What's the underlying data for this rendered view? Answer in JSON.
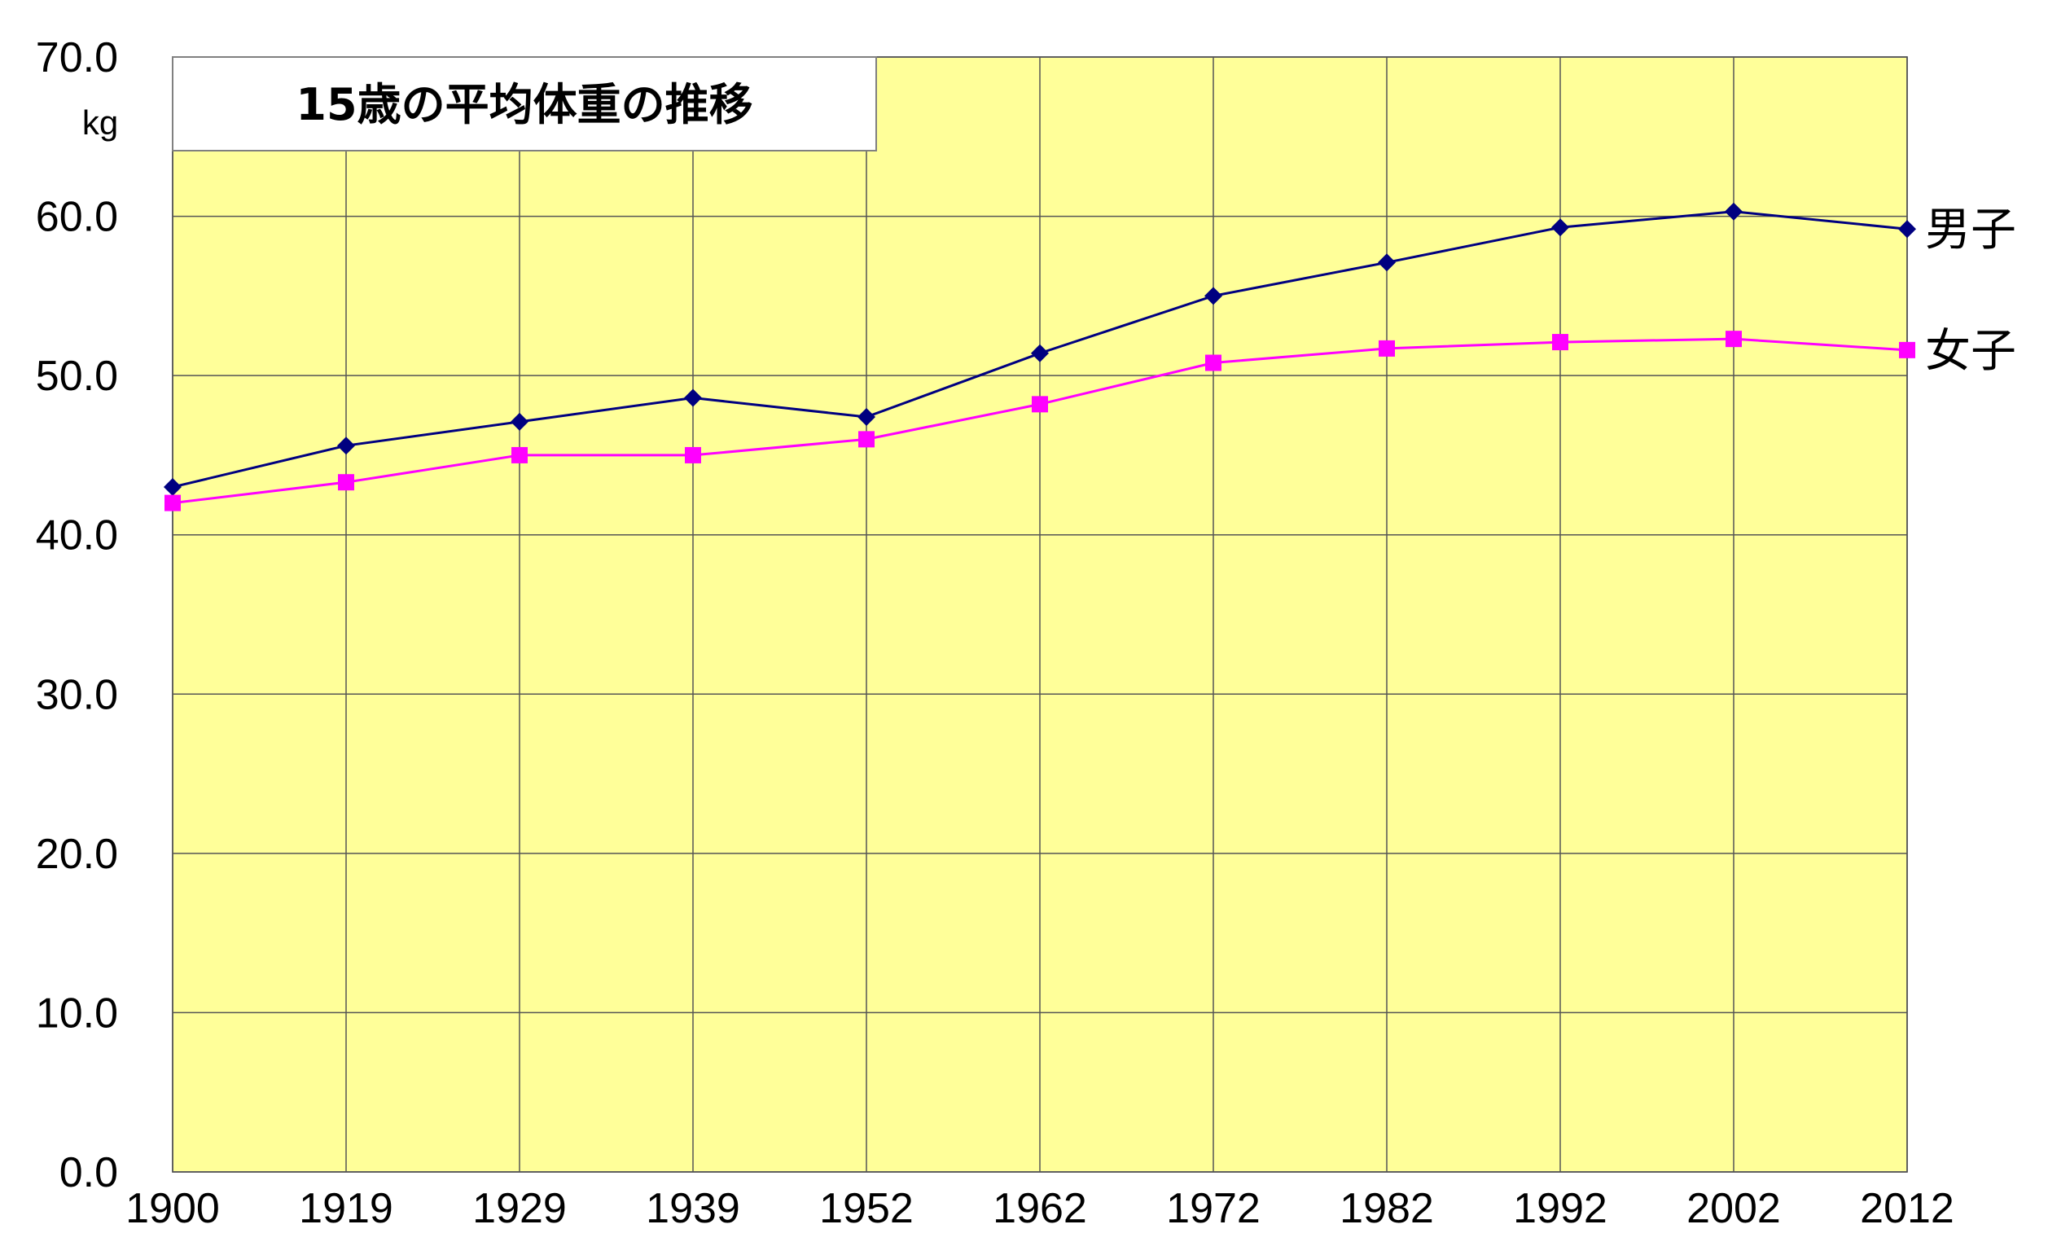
{
  "chart_data": {
    "type": "line",
    "title": "15歳の平均体重の推移",
    "ylabel_unit": "kg",
    "categories": [
      "1900",
      "1919",
      "1929",
      "1939",
      "1952",
      "1962",
      "1972",
      "1982",
      "1992",
      "2002",
      "2012"
    ],
    "ylim": [
      0,
      70
    ],
    "yticks": [
      "0.0",
      "10.0",
      "20.0",
      "30.0",
      "40.0",
      "50.0",
      "60.0",
      "70.0"
    ],
    "grid": true,
    "series": [
      {
        "name": "男子",
        "color": "#000080",
        "marker": "diamond",
        "values": [
          43.0,
          45.6,
          47.1,
          48.6,
          47.4,
          51.4,
          55.0,
          57.1,
          59.3,
          60.3,
          59.2
        ]
      },
      {
        "name": "女子",
        "color": "#ff00ff",
        "marker": "square",
        "values": [
          42.0,
          43.3,
          45.0,
          45.0,
          46.0,
          48.2,
          50.8,
          51.7,
          52.1,
          52.3,
          51.6
        ]
      }
    ],
    "plot_background": "#ffff99"
  }
}
